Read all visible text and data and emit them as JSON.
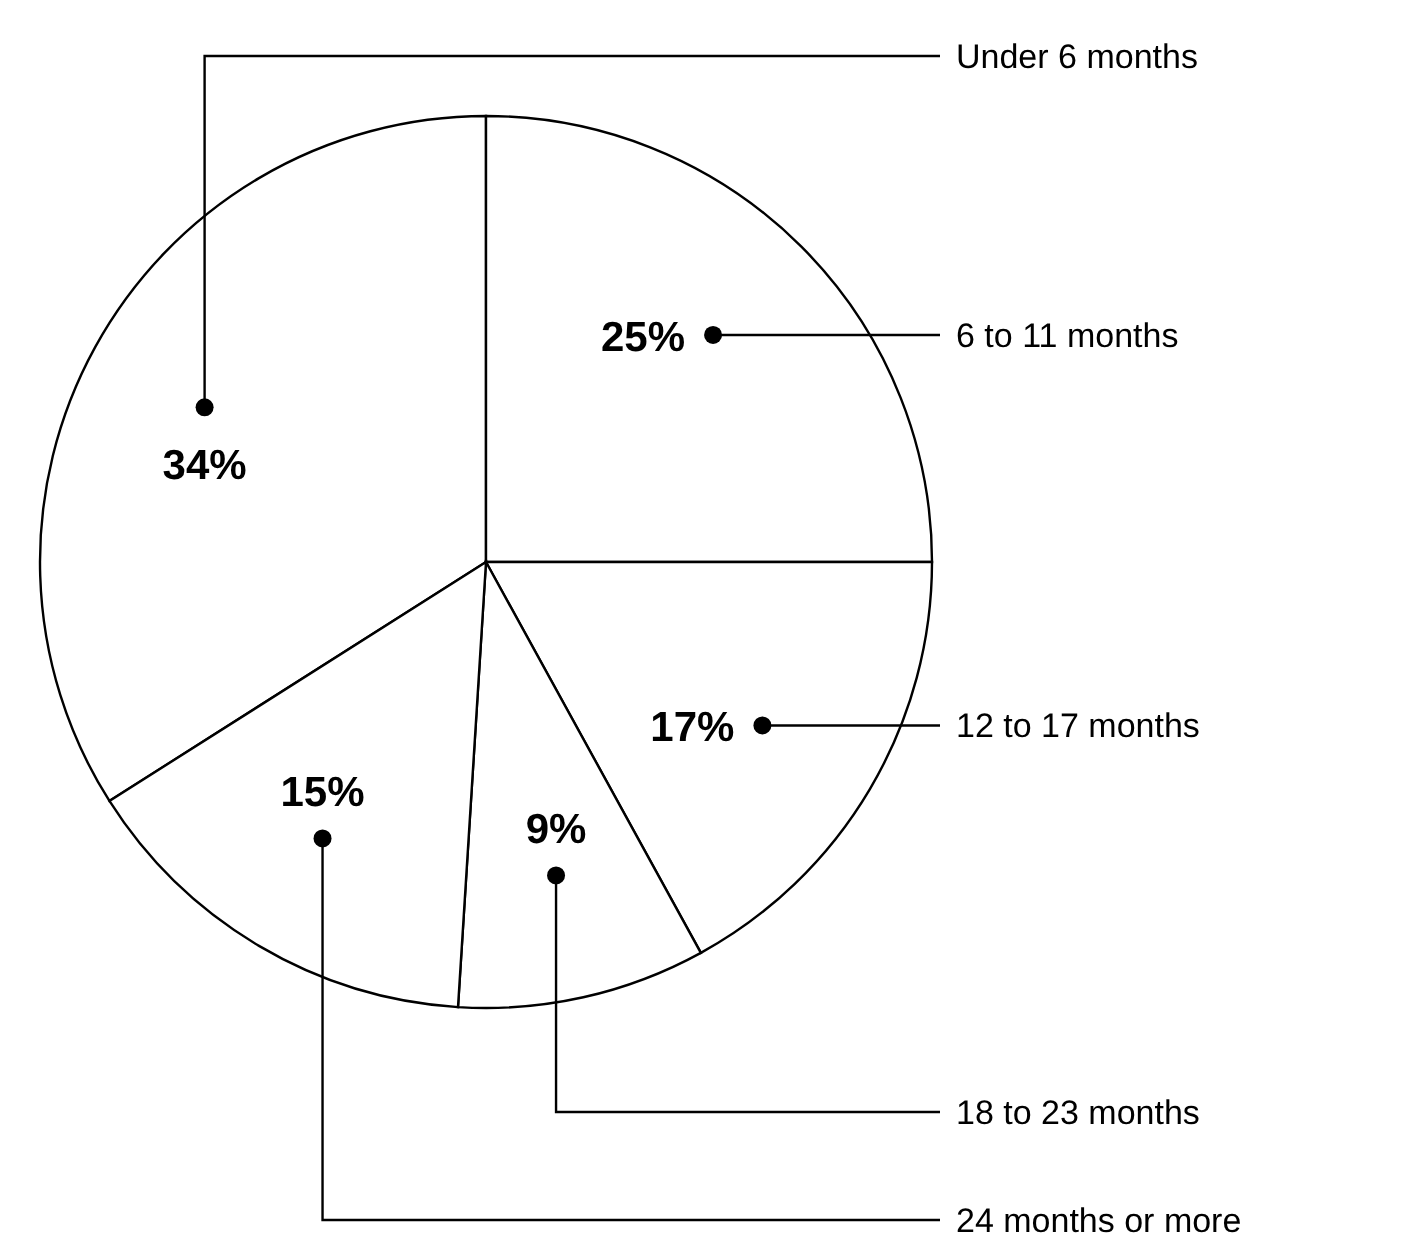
{
  "chart_data": {
    "type": "pie",
    "categories": [
      "Under 6 months",
      "6 to 11 months",
      "12 to 17 months",
      "18 to 23 months",
      "24 months or more"
    ],
    "values": [
      34,
      25,
      17,
      9,
      15
    ],
    "value_labels": [
      "34%",
      "25%",
      "17%",
      "9%",
      "15%"
    ],
    "colors": [
      "#ffffff",
      "#ffffff",
      "#ffffff",
      "#ffffff",
      "#ffffff"
    ]
  }
}
